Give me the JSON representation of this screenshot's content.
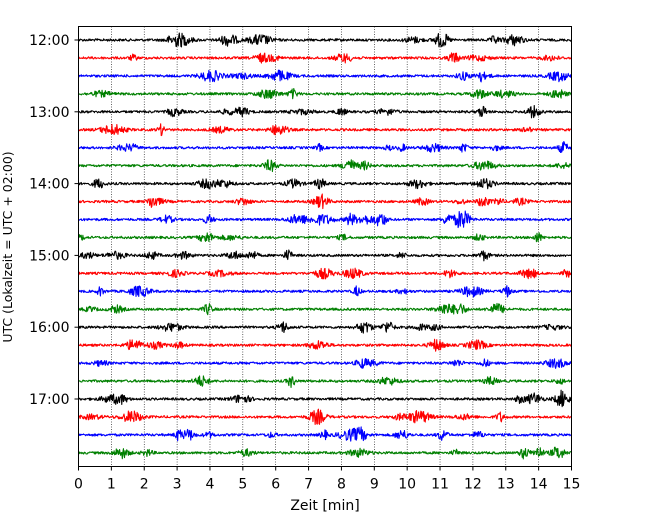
{
  "chart_data": {
    "type": "line",
    "title": "",
    "xlabel": "Zeit  [min]",
    "ylabel": "UTC (Lokalzeit = UTC + 02:00)",
    "xlim": [
      0,
      15
    ],
    "x_ticks": [
      "0",
      "1",
      "2",
      "3",
      "4",
      "5",
      "6",
      "7",
      "8",
      "9",
      "10",
      "11",
      "12",
      "13",
      "14",
      "15"
    ],
    "y_tick_labels": [
      "12:00",
      "13:00",
      "14:00",
      "15:00",
      "16:00",
      "17:00"
    ],
    "trace_interval_minutes": 15,
    "trace_start": "12:00",
    "trace_count": 24,
    "trace_color_cycle": [
      "#000000",
      "#ff0000",
      "#0000ff",
      "#008000"
    ],
    "grid": "vertical dotted lines at each minute",
    "traces": [
      {
        "label": "12:00",
        "color": "#000000"
      },
      {
        "label": "12:15",
        "color": "#ff0000"
      },
      {
        "label": "12:30",
        "color": "#0000ff"
      },
      {
        "label": "12:45",
        "color": "#008000"
      },
      {
        "label": "13:00",
        "color": "#000000"
      },
      {
        "label": "13:15",
        "color": "#ff0000"
      },
      {
        "label": "13:30",
        "color": "#0000ff"
      },
      {
        "label": "13:45",
        "color": "#008000"
      },
      {
        "label": "14:00",
        "color": "#000000"
      },
      {
        "label": "14:15",
        "color": "#ff0000"
      },
      {
        "label": "14:30",
        "color": "#0000ff"
      },
      {
        "label": "14:45",
        "color": "#008000"
      },
      {
        "label": "15:00",
        "color": "#000000"
      },
      {
        "label": "15:15",
        "color": "#ff0000"
      },
      {
        "label": "15:30",
        "color": "#0000ff"
      },
      {
        "label": "15:45",
        "color": "#008000"
      },
      {
        "label": "16:00",
        "color": "#000000"
      },
      {
        "label": "16:15",
        "color": "#ff0000"
      },
      {
        "label": "16:30",
        "color": "#0000ff"
      },
      {
        "label": "16:45",
        "color": "#008000"
      },
      {
        "label": "17:00",
        "color": "#000000"
      },
      {
        "label": "17:15",
        "color": "#ff0000"
      },
      {
        "label": "17:30",
        "color": "#0000ff"
      },
      {
        "label": "17:45",
        "color": "#008000"
      }
    ]
  }
}
